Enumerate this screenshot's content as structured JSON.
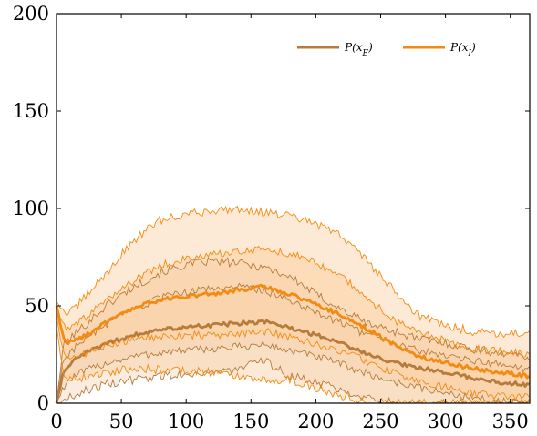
{
  "chart_data": {
    "type": "area",
    "title": "",
    "xlabel": "",
    "ylabel": "",
    "xlim": [
      0,
      365
    ],
    "ylim": [
      0,
      200
    ],
    "x_ticks": [
      0,
      50,
      100,
      150,
      200,
      250,
      300,
      350
    ],
    "y_ticks": [
      0,
      50,
      100,
      150,
      200
    ],
    "grid": false,
    "legend_position": "top-right",
    "legend": [
      "P(x_E)",
      "P(x_I)"
    ],
    "series": [
      {
        "name": "P(x_E)",
        "color": "#b77c3c",
        "band_color": "#f0d7bb",
        "x": [
          0,
          5,
          10,
          20,
          40,
          60,
          80,
          100,
          120,
          140,
          160,
          180,
          200,
          220,
          240,
          260,
          280,
          300,
          320,
          340,
          365
        ],
        "mean": [
          0,
          15,
          20,
          25,
          31,
          35,
          38,
          39,
          40,
          41,
          42,
          39,
          35,
          31,
          25,
          21,
          18,
          16,
          13,
          11,
          9
        ],
        "sd1_low": [
          0,
          8,
          12,
          16,
          21,
          24,
          26,
          27,
          28,
          29,
          30,
          27,
          24,
          20,
          15,
          11,
          8,
          5,
          3,
          1,
          0
        ],
        "sd1_high": [
          0,
          22,
          26,
          32,
          41,
          48,
          54,
          57,
          59,
          60,
          58,
          53,
          47,
          41,
          35,
          31,
          27,
          25,
          22,
          20,
          17
        ],
        "sd2_low": [
          0,
          1,
          3,
          6,
          10,
          12,
          14,
          15,
          16,
          17,
          22,
          14,
          11,
          7,
          3,
          0,
          0,
          0,
          0,
          0,
          0
        ],
        "sd2_high": [
          0,
          29,
          33,
          39,
          51,
          60,
          67,
          71,
          73,
          72,
          70,
          65,
          56,
          48,
          41,
          37,
          33,
          31,
          28,
          26,
          24
        ]
      },
      {
        "name": "P(x_I)",
        "color": "#f58a10",
        "band_color": "#fbd0a3",
        "x": [
          0,
          5,
          10,
          20,
          40,
          60,
          80,
          100,
          120,
          140,
          160,
          180,
          200,
          220,
          240,
          260,
          280,
          300,
          320,
          340,
          365
        ],
        "mean": [
          50,
          34,
          31,
          34,
          42,
          49,
          53,
          55,
          56,
          58,
          60,
          56,
          51,
          45,
          38,
          30,
          24,
          21,
          18,
          16,
          14
        ],
        "sd1_low": [
          45,
          26,
          24,
          25,
          30,
          33,
          34,
          35,
          35,
          35,
          37,
          34,
          30,
          27,
          21,
          16,
          11,
          8,
          5,
          4,
          3
        ],
        "sd1_high": [
          51,
          40,
          38,
          43,
          53,
          63,
          71,
          74,
          76,
          78,
          79,
          77,
          72,
          65,
          54,
          43,
          36,
          32,
          28,
          27,
          25
        ],
        "sd2_low": [
          40,
          16,
          13,
          13,
          16,
          18,
          17,
          17,
          16,
          14,
          12,
          12,
          8,
          4,
          0,
          0,
          0,
          0,
          0,
          0,
          0
        ],
        "sd2_high": [
          52,
          48,
          46,
          53,
          68,
          84,
          94,
          97,
          99,
          100,
          98,
          96,
          92,
          86,
          73,
          58,
          45,
          40,
          37,
          36,
          36
        ]
      }
    ]
  }
}
